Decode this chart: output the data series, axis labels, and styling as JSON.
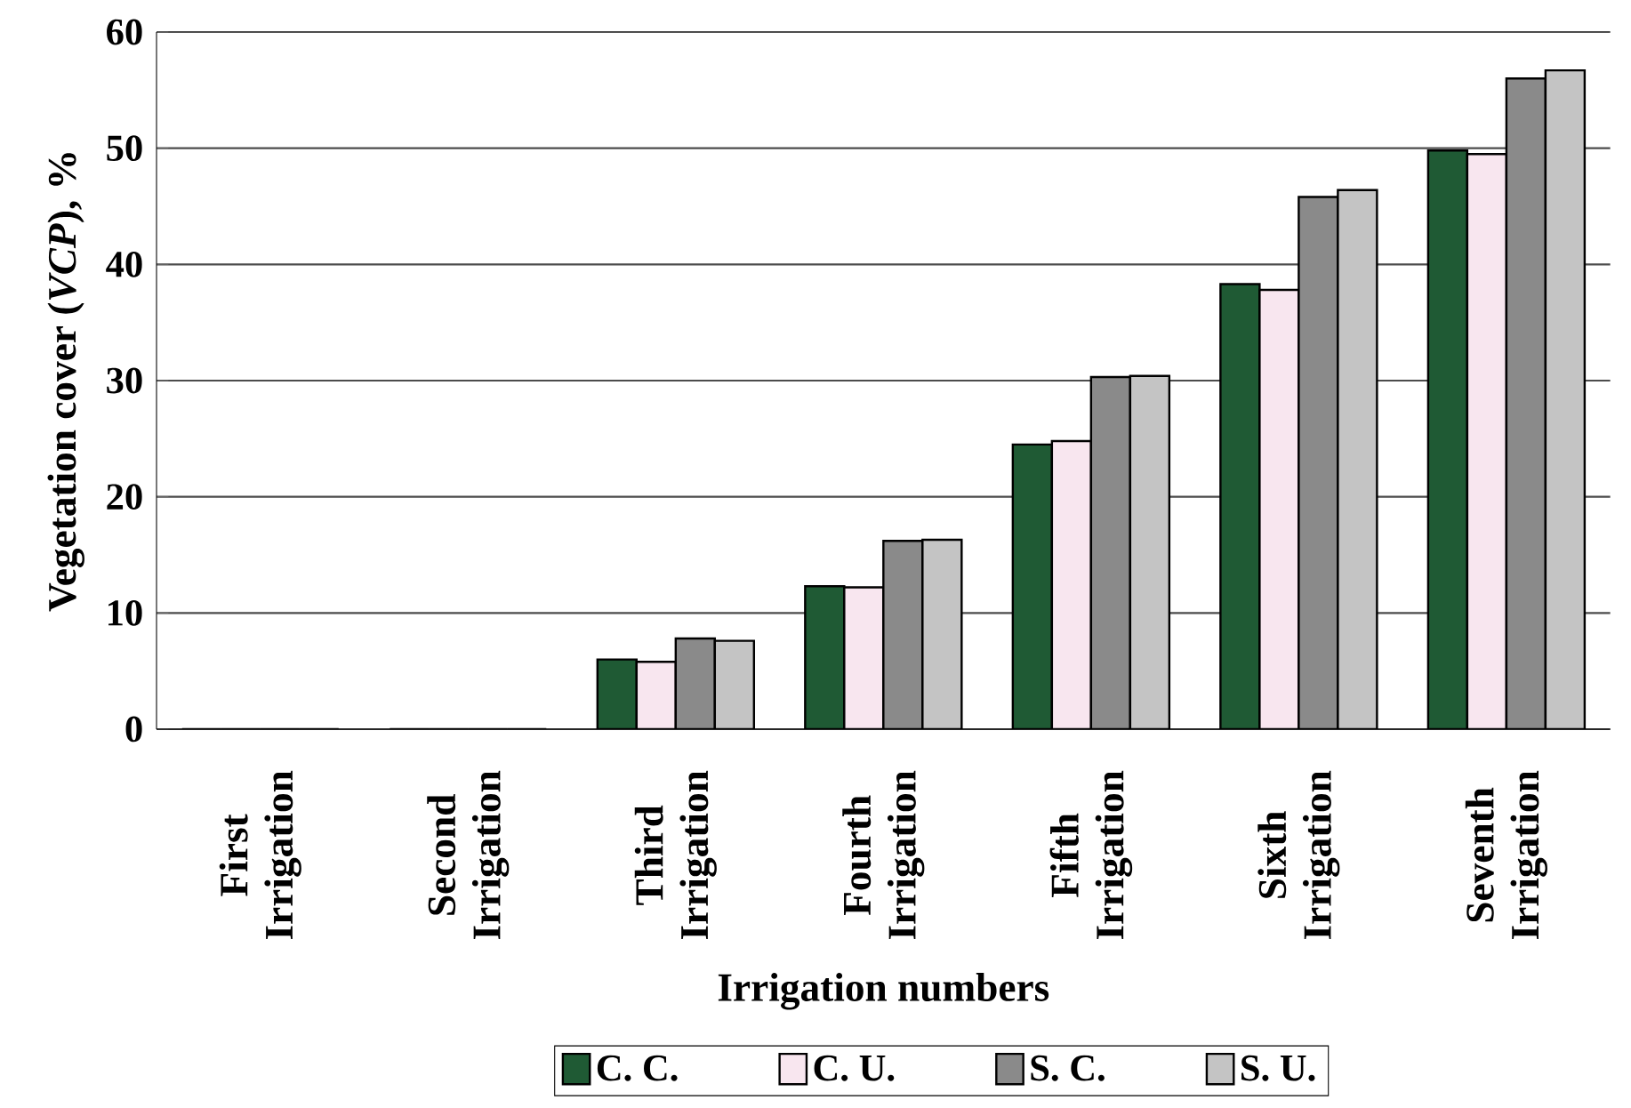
{
  "chart_data": {
    "type": "bar",
    "xlabel": "Irrigation numbers",
    "ylabel": "Vegetation cover (*VCP*), %",
    "categories": [
      "First Irrigation",
      "Second Irrigation",
      "Third Irrigation",
      "Fourth Irrigation",
      "Fifth Irrigation",
      "Sixth Irrigation",
      "Seventh Irrigation"
    ],
    "series": [
      {
        "name": "C. C.",
        "color": "#1f5a34",
        "values": [
          0,
          0,
          6.0,
          12.3,
          24.5,
          38.3,
          49.8
        ]
      },
      {
        "name": "C. U.",
        "color": "#f8e6ef",
        "values": [
          0,
          0,
          5.8,
          12.2,
          24.8,
          37.8,
          49.5
        ]
      },
      {
        "name": "S. C.",
        "color": "#8a8a8a",
        "values": [
          0,
          0,
          7.8,
          16.2,
          30.3,
          45.8,
          56.0
        ]
      },
      {
        "name": "S. U.",
        "color": "#c4c4c4",
        "values": [
          0,
          0,
          7.6,
          16.3,
          30.4,
          46.4,
          56.7
        ]
      }
    ],
    "ylim": [
      0,
      60
    ],
    "yticks": [
      0,
      10,
      20,
      30,
      40,
      50,
      60
    ],
    "grid": "y",
    "legend": "bottom"
  }
}
